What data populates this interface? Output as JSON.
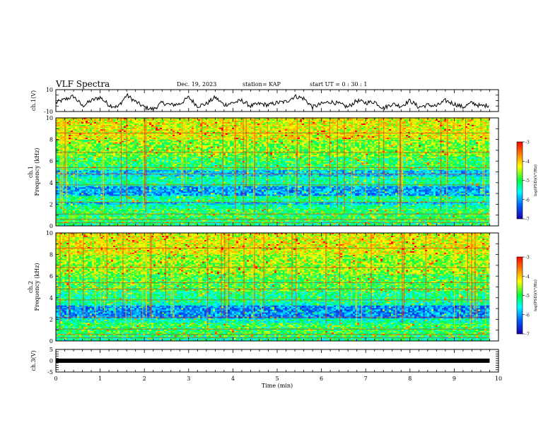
{
  "header": {
    "title": "VLF Spectra",
    "date": "Dec. 19, 2023",
    "station": "station= KAP",
    "start_ut": "start  UT =   0 : 30 : 1"
  },
  "chart_data": [
    {
      "type": "line",
      "panel": "ch1-waveform",
      "ylabel": "ch.1(V)",
      "ylim": [
        -10,
        10
      ],
      "yticks": [
        "10",
        "-10"
      ],
      "xlim": [
        0,
        10
      ],
      "x": [
        0.0,
        0.2,
        0.4,
        0.6,
        0.8,
        1.0,
        1.2,
        1.4,
        1.6,
        1.8,
        2.0,
        2.2,
        2.4,
        2.6,
        2.8,
        3.0,
        3.2,
        3.4,
        3.6,
        3.8,
        4.0,
        4.2,
        4.4,
        4.6,
        4.8,
        5.0,
        5.2,
        5.4,
        5.6,
        5.8,
        6.0,
        6.2,
        6.4,
        6.6,
        6.8,
        7.0,
        7.2,
        7.4,
        7.6,
        7.8,
        8.0,
        8.2,
        8.4,
        8.6,
        8.8,
        9.0,
        9.2,
        9.4,
        9.6,
        9.8
      ],
      "y": [
        -2,
        1,
        4,
        -5,
        0,
        3,
        -4,
        -6,
        5,
        -1,
        -6,
        -8,
        -2,
        -4,
        -3,
        3,
        -5,
        -3,
        3,
        -4,
        -2,
        0,
        -5,
        -3,
        -4,
        -2,
        -1,
        4,
        2,
        -6,
        -3,
        -1,
        -3,
        -6,
        0,
        -2,
        -1,
        -7,
        -3,
        -5,
        0,
        -6,
        -4,
        -5,
        0,
        -3,
        -6,
        -2,
        -5,
        -4
      ]
    },
    {
      "type": "heatmap",
      "panel": "ch1-spectrogram",
      "ylabel": "ch.1 Frequency (kHz)",
      "ylim": [
        0,
        10
      ],
      "xlim": [
        0,
        10
      ],
      "yticks": [
        "0",
        "2",
        "4",
        "6",
        "8",
        "10"
      ],
      "colorbar": {
        "label": "log(PSD)(V²/Hz)",
        "range": [
          -7,
          -3
        ],
        "ticks": [
          "-3",
          "-4",
          "-5",
          "-6",
          "-7"
        ]
      },
      "freq_bands_kHz": [
        {
          "from": 0.0,
          "to": 0.4,
          "level": -5.2
        },
        {
          "from": 0.4,
          "to": 1.6,
          "level": -5.0
        },
        {
          "from": 1.6,
          "to": 2.0,
          "level": -5.3
        },
        {
          "from": 2.0,
          "to": 2.2,
          "level": -5.8
        },
        {
          "from": 2.2,
          "to": 2.8,
          "level": -5.2
        },
        {
          "from": 2.8,
          "to": 3.7,
          "level": -6.0
        },
        {
          "from": 3.7,
          "to": 4.6,
          "level": -5.3
        },
        {
          "from": 4.6,
          "to": 5.2,
          "level": -5.8
        },
        {
          "from": 5.2,
          "to": 6.4,
          "level": -5.0
        },
        {
          "from": 6.4,
          "to": 8.0,
          "level": -4.7
        },
        {
          "from": 8.0,
          "to": 10.0,
          "level": -4.3
        }
      ]
    },
    {
      "type": "heatmap",
      "panel": "ch2-spectrogram",
      "ylabel": "ch.2 Frequency (kHz)",
      "ylim": [
        0,
        10
      ],
      "xlim": [
        0,
        10
      ],
      "yticks": [
        "0",
        "2",
        "4",
        "6",
        "8",
        "10"
      ],
      "colorbar": {
        "label": "log(PSD)(V²/Hz)",
        "range": [
          -7,
          -3
        ],
        "ticks": [
          "-3",
          "-4",
          "-5",
          "-6",
          "-7"
        ]
      },
      "freq_bands_kHz": [
        {
          "from": 0.0,
          "to": 0.4,
          "level": -5.3
        },
        {
          "from": 0.4,
          "to": 1.7,
          "level": -5.0
        },
        {
          "from": 1.7,
          "to": 2.1,
          "level": -5.4
        },
        {
          "from": 2.1,
          "to": 3.3,
          "level": -6.1
        },
        {
          "from": 3.3,
          "to": 3.6,
          "level": -5.4
        },
        {
          "from": 3.6,
          "to": 4.6,
          "level": -5.2
        },
        {
          "from": 4.6,
          "to": 6.2,
          "level": -4.9
        },
        {
          "from": 6.2,
          "to": 8.0,
          "level": -4.6
        },
        {
          "from": 8.0,
          "to": 10.0,
          "level": -4.3
        }
      ]
    },
    {
      "type": "line",
      "panel": "ch3-signal",
      "ylabel": "ch.3(V)",
      "ylim": [
        -5,
        5
      ],
      "yticks": [
        "5",
        "0",
        "-5"
      ],
      "xlim": [
        0,
        10
      ],
      "xlabel": "Time (min)",
      "xticks": [
        "0",
        "1",
        "2",
        "3",
        "4",
        "5",
        "6",
        "7",
        "8",
        "9",
        "10"
      ],
      "x": [
        0,
        9.8
      ],
      "y": [
        0,
        0
      ]
    }
  ]
}
